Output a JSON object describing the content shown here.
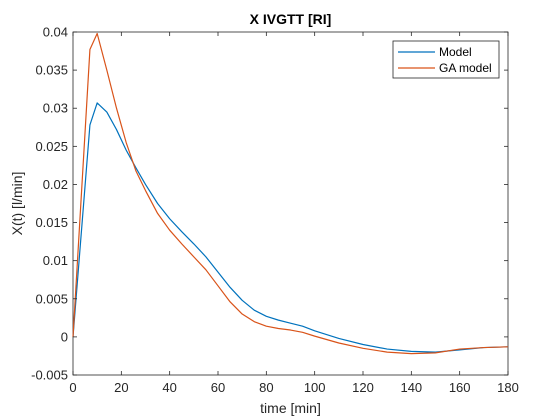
{
  "chart_data": {
    "type": "line",
    "title": "X IVGTT [RI]",
    "xlabel": "time [min]",
    "ylabel": "X(t) [l/min]",
    "xlim": [
      0,
      180
    ],
    "ylim": [
      -0.005,
      0.04
    ],
    "xticks": [
      0,
      20,
      40,
      60,
      80,
      100,
      120,
      140,
      160,
      180
    ],
    "xtick_labels": [
      "0",
      "20",
      "40",
      "60",
      "80",
      "100",
      "120",
      "140",
      "160",
      "180"
    ],
    "yticks": [
      -0.005,
      0,
      0.005,
      0.01,
      0.015,
      0.02,
      0.025,
      0.03,
      0.035,
      0.04
    ],
    "ytick_labels": [
      "-0.005",
      "0",
      "0.005",
      "0.01",
      "0.015",
      "0.02",
      "0.025",
      "0.03",
      "0.035",
      "0.04"
    ],
    "grid": false,
    "legend_position": "top-right",
    "series": [
      {
        "name": "Model",
        "color": "#0072BD",
        "points": [
          [
            0,
            0.0
          ],
          [
            7,
            0.0278
          ],
          [
            10,
            0.0307
          ],
          [
            14,
            0.0295
          ],
          [
            18,
            0.0272
          ],
          [
            22,
            0.0245
          ],
          [
            26,
            0.0222
          ],
          [
            30,
            0.02
          ],
          [
            35,
            0.0175
          ],
          [
            40,
            0.0155
          ],
          [
            45,
            0.0138
          ],
          [
            50,
            0.0122
          ],
          [
            55,
            0.0105
          ],
          [
            60,
            0.0085
          ],
          [
            65,
            0.0065
          ],
          [
            70,
            0.0048
          ],
          [
            75,
            0.0035
          ],
          [
            80,
            0.0027
          ],
          [
            85,
            0.0022
          ],
          [
            90,
            0.0018
          ],
          [
            95,
            0.0014
          ],
          [
            100,
            0.0008
          ],
          [
            110,
            -0.0002
          ],
          [
            120,
            -0.001
          ],
          [
            130,
            -0.0016
          ],
          [
            140,
            -0.0019
          ],
          [
            150,
            -0.002
          ],
          [
            160,
            -0.0017
          ],
          [
            170,
            -0.0014
          ],
          [
            180,
            -0.0013
          ]
        ]
      },
      {
        "name": "GA model",
        "color": "#D95319",
        "points": [
          [
            0,
            0.0
          ],
          [
            7,
            0.0377
          ],
          [
            10,
            0.0398
          ],
          [
            14,
            0.035
          ],
          [
            18,
            0.03
          ],
          [
            22,
            0.0255
          ],
          [
            26,
            0.0218
          ],
          [
            30,
            0.0192
          ],
          [
            35,
            0.0162
          ],
          [
            40,
            0.014
          ],
          [
            45,
            0.0122
          ],
          [
            50,
            0.0105
          ],
          [
            55,
            0.0088
          ],
          [
            60,
            0.0067
          ],
          [
            65,
            0.0046
          ],
          [
            70,
            0.003
          ],
          [
            75,
            0.002
          ],
          [
            80,
            0.0014
          ],
          [
            85,
            0.0011
          ],
          [
            90,
            0.0009
          ],
          [
            95,
            0.0006
          ],
          [
            100,
            0.0001
          ],
          [
            110,
            -0.0008
          ],
          [
            120,
            -0.0015
          ],
          [
            130,
            -0.002
          ],
          [
            140,
            -0.0022
          ],
          [
            150,
            -0.0021
          ],
          [
            160,
            -0.0016
          ],
          [
            170,
            -0.0014
          ],
          [
            180,
            -0.0013
          ]
        ]
      }
    ]
  }
}
